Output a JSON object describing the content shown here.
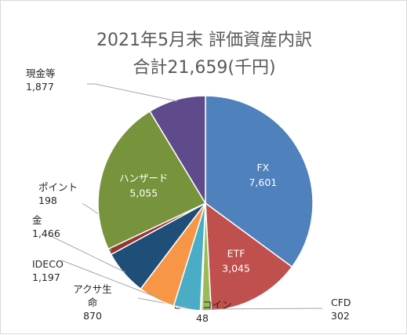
{
  "title_line1": "2021年5月末 評価資産内訳",
  "title_line2": "合計21,659(千円)",
  "chart_data": {
    "type": "pie",
    "title": "2021年5月末 評価資産内訳",
    "subtitle": "合計21,659(千円)",
    "total": 21659,
    "slices": [
      {
        "name": "FX",
        "value": 7601,
        "value_label": "7,601",
        "color": "#4f81bd",
        "label_inside": true
      },
      {
        "name": "ETF",
        "value": 3045,
        "value_label": "3,045",
        "color": "#c0504d",
        "label_inside": true
      },
      {
        "name": "CFD",
        "value": 302,
        "value_label": "302",
        "color": "#9bbb59",
        "label_inside": false
      },
      {
        "name": "ビットコイン",
        "value": 48,
        "value_label": "48",
        "color": "#7f7f7f",
        "label_inside": false
      },
      {
        "name": "アクサ生命",
        "value": 870,
        "value_label": "870",
        "color": "#4bacc6",
        "label_inside": false
      },
      {
        "name": "IDECO",
        "value": 1197,
        "value_label": "1,197",
        "color": "#f79646",
        "label_inside": false
      },
      {
        "name": "金",
        "value": 1466,
        "value_label": "1,466",
        "color": "#1f4e79",
        "label_inside": false
      },
      {
        "name": "ポイント",
        "value": 198,
        "value_label": "198",
        "color": "#943634",
        "label_inside": false
      },
      {
        "name": "ハンザード",
        "value": 5055,
        "value_label": "5,055",
        "color": "#77933c",
        "label_inside": true
      },
      {
        "name": "現金等",
        "value": 1877,
        "value_label": "1,877",
        "color": "#5f4b8b",
        "label_inside": false
      }
    ],
    "start_angle": "12 o'clock",
    "direction": "clockwise",
    "legend": "none"
  }
}
